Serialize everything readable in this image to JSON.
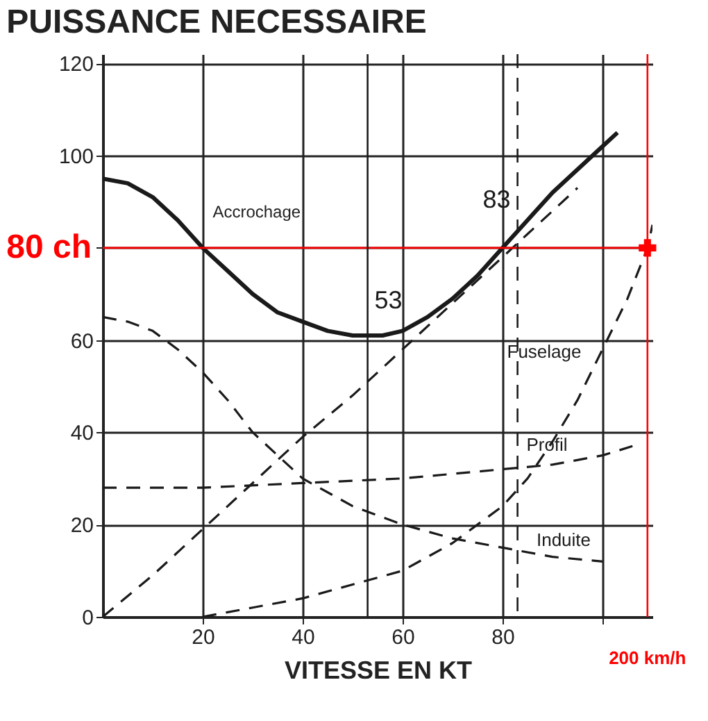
{
  "chart_data": {
    "type": "line",
    "title": "PUISSANCE NECESSAIRE",
    "xlabel": "VITESSE EN KT",
    "xlim": [
      0,
      110
    ],
    "ylim": [
      0,
      122
    ],
    "xticks": [
      20,
      40,
      60,
      80,
      {
        "value": 100,
        "label": null
      }
    ],
    "yticks": [
      0,
      20,
      40,
      60,
      {
        "value": 80,
        "label": null
      },
      100,
      120
    ],
    "grid": true,
    "series": [
      {
        "color": "#1a1a1a",
        "line_style": "solid",
        "x": [
          0,
          5,
          10,
          15,
          20,
          25,
          30,
          35,
          40,
          45,
          50,
          53,
          56,
          60,
          65,
          70,
          75,
          80,
          85,
          90,
          95,
          100,
          103
        ],
        "values": [
          95,
          94,
          91,
          86,
          80,
          75,
          70,
          66,
          64,
          62,
          61,
          61,
          61,
          62,
          65,
          69,
          74,
          80,
          86,
          92,
          97,
          102,
          105
        ]
      },
      {
        "color": "#1a1a1a",
        "line_style": "dashed",
        "x": [
          0,
          10,
          20,
          30,
          40,
          50,
          60,
          70,
          80,
          90,
          95
        ],
        "values": [
          0,
          9,
          19,
          29,
          39,
          48,
          58,
          68,
          78,
          88,
          93
        ]
      },
      {
        "name": "Induite",
        "color": "#1a1a1a",
        "line_style": "dashed",
        "x": [
          0,
          5,
          10,
          15,
          20,
          25,
          30,
          35,
          40,
          50,
          60,
          70,
          80,
          90,
          100
        ],
        "values": [
          65,
          64,
          62,
          58,
          53,
          47,
          40,
          35,
          30,
          24,
          20,
          17,
          15,
          13,
          12
        ]
      },
      {
        "name": "Profil",
        "color": "#1a1a1a",
        "line_style": "dashed",
        "x": [
          0,
          20,
          40,
          60,
          80,
          90,
          100,
          106
        ],
        "values": [
          28,
          28,
          29,
          30,
          32,
          33,
          35,
          37
        ]
      },
      {
        "name": "Fuselage",
        "color": "#1a1a1a",
        "line_style": "dashed",
        "x": [
          20,
          30,
          40,
          50,
          60,
          70,
          80,
          85,
          90,
          95,
          100,
          105,
          109,
          110
        ],
        "values": [
          0,
          2,
          4,
          7,
          10,
          16,
          24,
          30,
          38,
          47,
          58,
          69,
          80,
          85
        ]
      },
      {
        "type": "scatter",
        "marker": "cross",
        "color": "#ff0000",
        "x": [
          109
        ],
        "values": [
          80
        ]
      }
    ],
    "ref_lines": [
      {
        "axis": "y",
        "value": 80,
        "label": "80 ch",
        "color": "#ff0000"
      },
      {
        "axis": "x",
        "value": 53,
        "label": "53",
        "color": "#1a1a1a"
      },
      {
        "axis": "x",
        "value": 83,
        "label": "83",
        "color": "#1a1a1a",
        "line_style": "dashed"
      },
      {
        "axis": "x",
        "value": 109,
        "label": "200 km/h",
        "color": "#ff0000"
      }
    ],
    "annotations": [
      "Accrochage"
    ]
  }
}
